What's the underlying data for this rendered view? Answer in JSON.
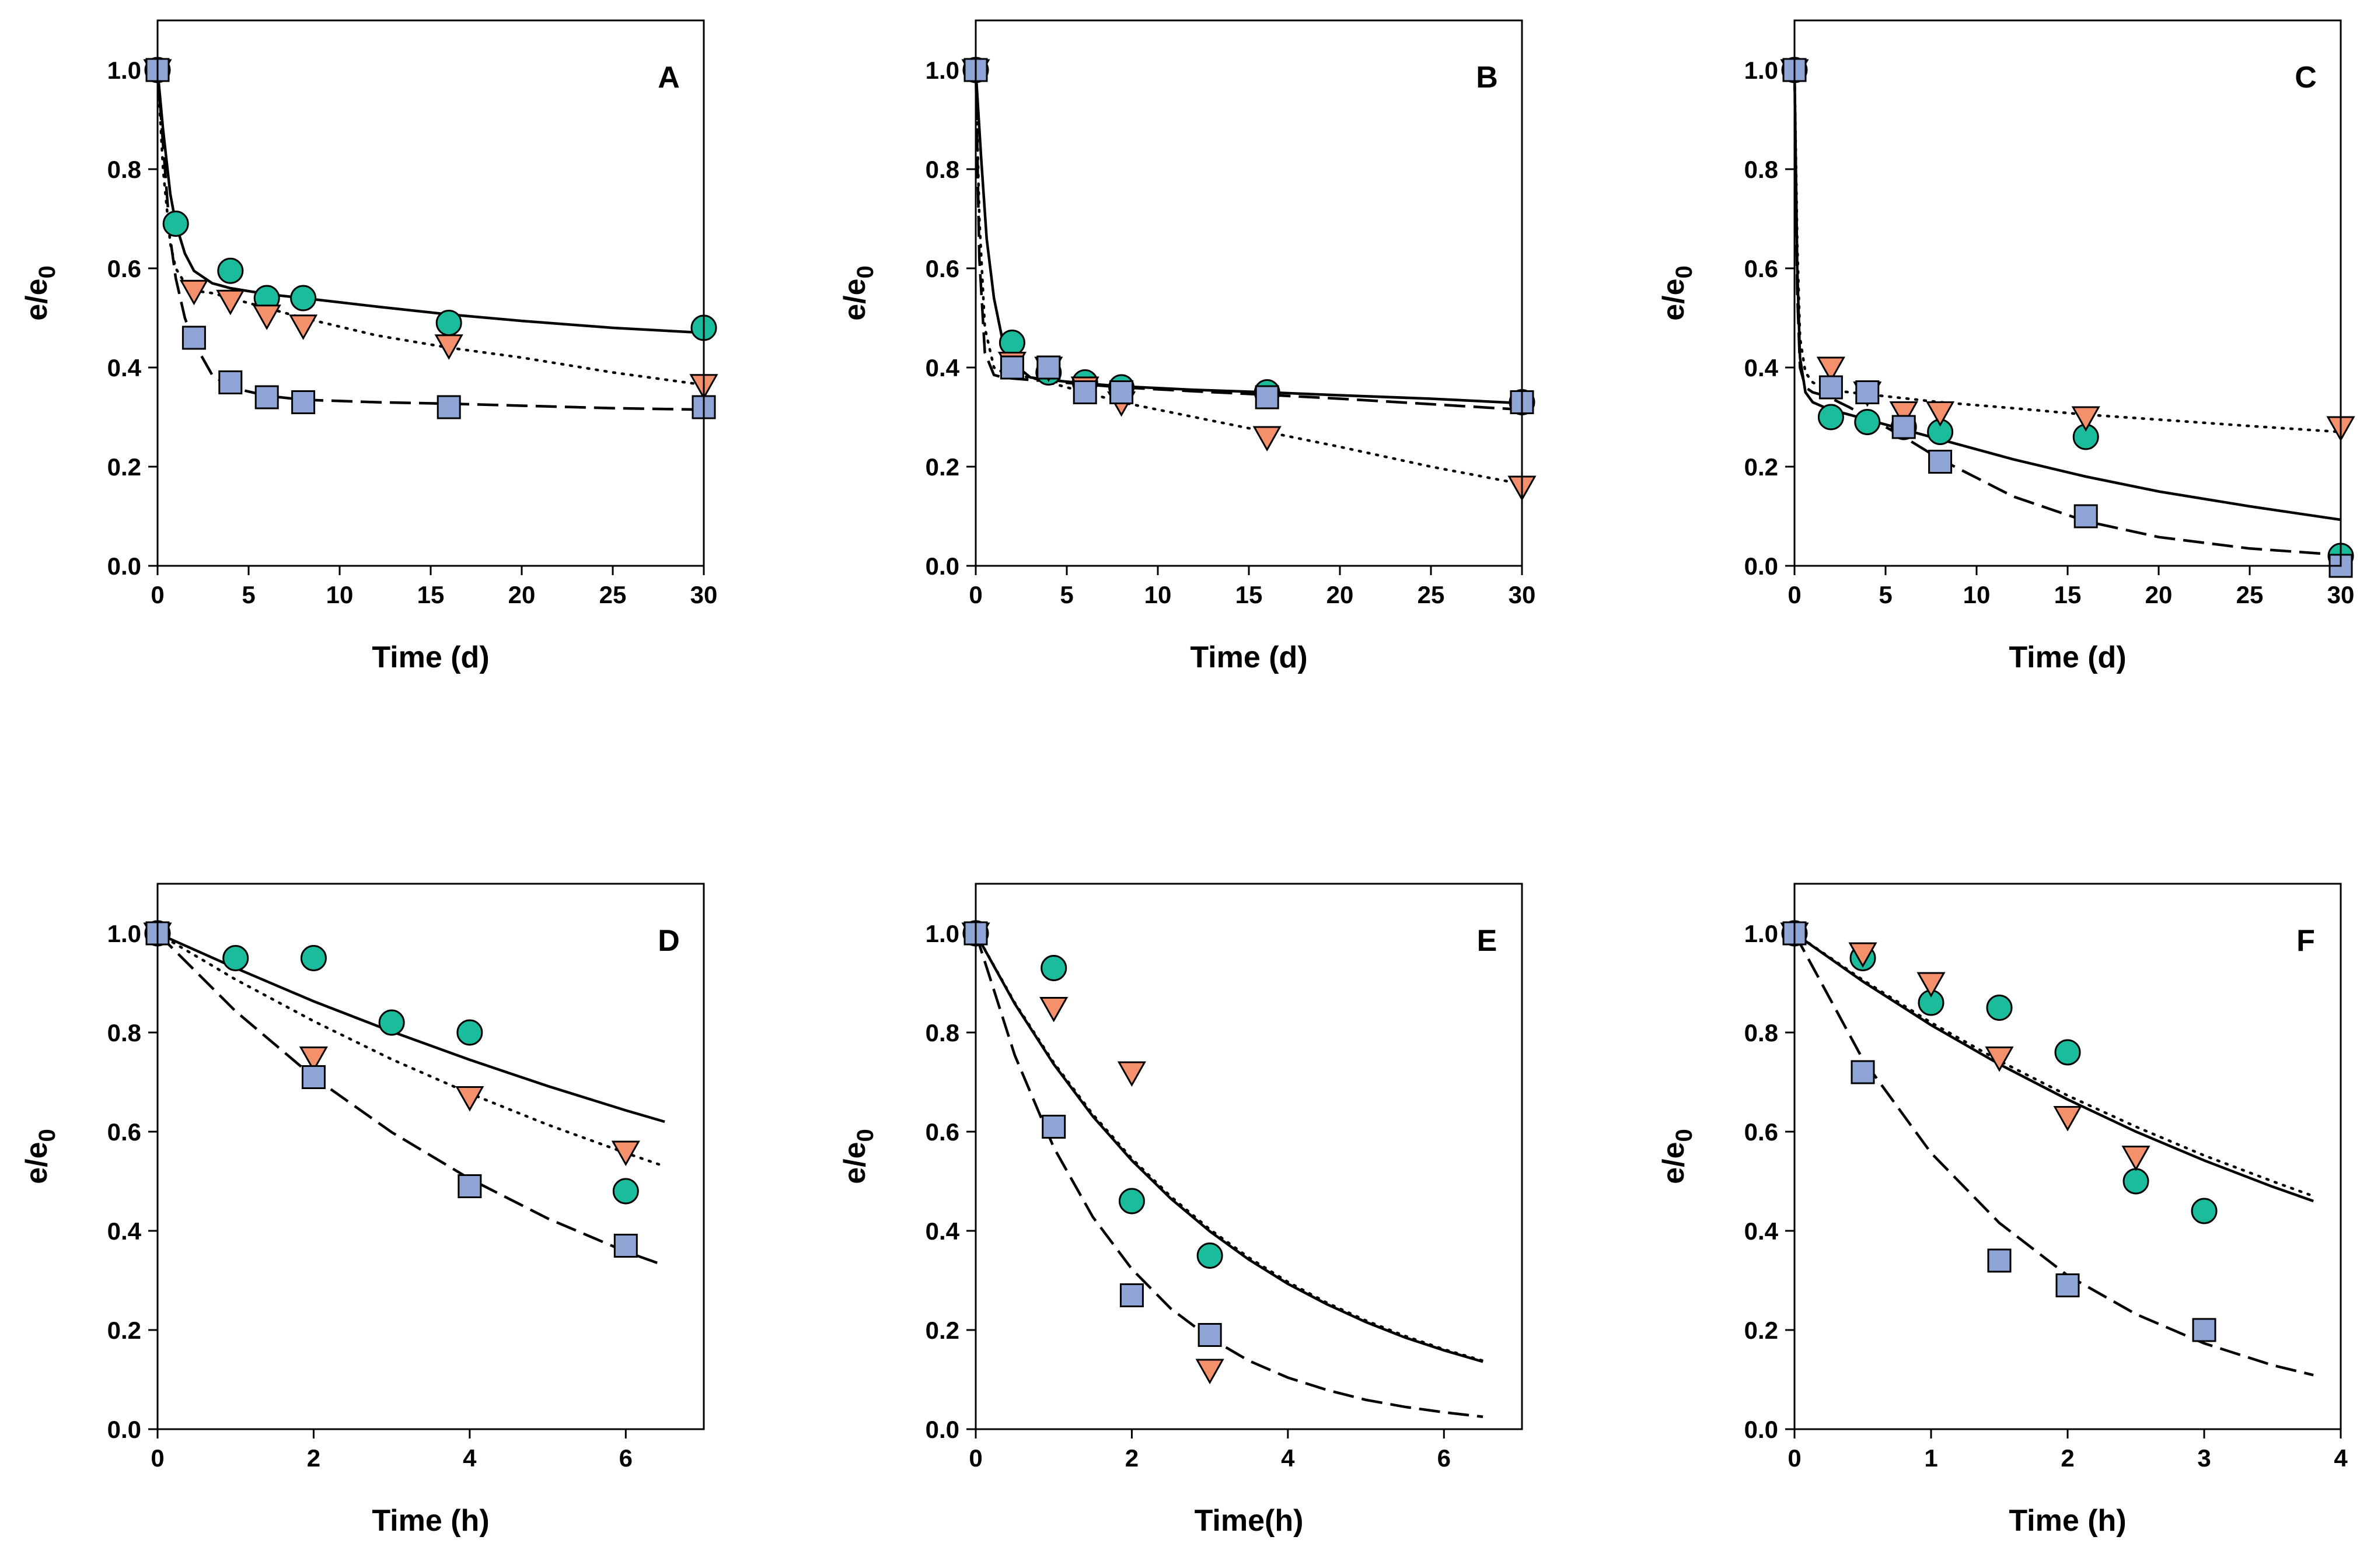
{
  "chart_data": [
    {
      "panel": "A",
      "type": "scatter",
      "xlabel": "Time (d)",
      "ylabel": "e/e0",
      "ylabel_main": "e/e",
      "ylabel_sub": "0",
      "xlim": [
        0,
        30
      ],
      "ylim": [
        0,
        1.1
      ],
      "xticks": [
        0,
        5,
        10,
        15,
        20,
        25,
        30
      ],
      "yticks": [
        "0.0",
        "0.2",
        "0.4",
        "0.6",
        "0.8",
        "1.0"
      ],
      "series": [
        {
          "name": "circle",
          "marker": "circle",
          "color": "#1ABC9C",
          "x": [
            0,
            1,
            4,
            6,
            8,
            16,
            30
          ],
          "y": [
            1.0,
            0.69,
            0.595,
            0.54,
            0.54,
            0.49,
            0.48
          ]
        },
        {
          "name": "triangle",
          "marker": "triangle-down",
          "color": "#F4906B",
          "x": [
            0,
            2,
            4,
            6,
            8,
            16,
            30
          ],
          "y": [
            1.0,
            0.555,
            0.535,
            0.505,
            0.485,
            0.445,
            0.365
          ]
        },
        {
          "name": "square",
          "marker": "square",
          "color": "#8FA5D5",
          "x": [
            0,
            2,
            4,
            6,
            8,
            16,
            30
          ],
          "y": [
            1.0,
            0.46,
            0.37,
            0.34,
            0.33,
            0.32,
            0.32
          ]
        }
      ],
      "fits": [
        {
          "style": "solid",
          "x": [
            0,
            0.3,
            0.7,
            1,
            1.5,
            2,
            3,
            4,
            6,
            8,
            12,
            16,
            20,
            25,
            30
          ],
          "y": [
            1.0,
            0.88,
            0.75,
            0.69,
            0.63,
            0.595,
            0.57,
            0.56,
            0.548,
            0.54,
            0.523,
            0.507,
            0.494,
            0.48,
            0.47
          ]
        },
        {
          "style": "dotted",
          "x": [
            0,
            0.3,
            0.7,
            1,
            1.5,
            2,
            3,
            4,
            6,
            8,
            12,
            16,
            20,
            25,
            30
          ],
          "y": [
            1.0,
            0.8,
            0.65,
            0.6,
            0.57,
            0.555,
            0.55,
            0.54,
            0.52,
            0.5,
            0.465,
            0.44,
            0.42,
            0.39,
            0.365
          ]
        },
        {
          "style": "dashed",
          "x": [
            0,
            0.3,
            0.7,
            1,
            1.5,
            2,
            3,
            4,
            6,
            8,
            12,
            16,
            20,
            25,
            30
          ],
          "y": [
            1.0,
            0.85,
            0.66,
            0.58,
            0.5,
            0.45,
            0.385,
            0.36,
            0.343,
            0.335,
            0.33,
            0.327,
            0.323,
            0.318,
            0.315
          ]
        }
      ]
    },
    {
      "panel": "B",
      "type": "scatter",
      "xlabel": "Time (d)",
      "ylabel": "e/e0",
      "ylabel_main": "e/e",
      "ylabel_sub": "0",
      "xlim": [
        0,
        30
      ],
      "ylim": [
        0,
        1.1
      ],
      "xticks": [
        0,
        5,
        10,
        15,
        20,
        25,
        30
      ],
      "yticks": [
        "0.0",
        "0.2",
        "0.4",
        "0.6",
        "0.8",
        "1.0"
      ],
      "series": [
        {
          "name": "circle",
          "marker": "circle",
          "color": "#1ABC9C",
          "x": [
            0,
            2,
            4,
            6,
            8,
            16,
            30
          ],
          "y": [
            1.0,
            0.45,
            0.39,
            0.37,
            0.36,
            0.35,
            0.33
          ]
        },
        {
          "name": "triangle",
          "marker": "triangle-down",
          "color": "#F4906B",
          "x": [
            0,
            2,
            4,
            6,
            8,
            16,
            30
          ],
          "y": [
            1.0,
            0.41,
            0.4,
            0.36,
            0.33,
            0.26,
            0.16
          ]
        },
        {
          "name": "square",
          "marker": "square",
          "color": "#8FA5D5",
          "x": [
            0,
            2,
            4,
            6,
            8,
            16,
            30
          ],
          "y": [
            1.0,
            0.4,
            0.4,
            0.35,
            0.35,
            0.34,
            0.33
          ]
        }
      ],
      "fits": [
        {
          "style": "solid",
          "x": [
            0,
            0.3,
            0.6,
            1,
            1.5,
            2,
            3,
            4,
            6,
            8,
            12,
            16,
            20,
            25,
            30
          ],
          "y": [
            1.0,
            0.82,
            0.66,
            0.54,
            0.45,
            0.41,
            0.38,
            0.375,
            0.368,
            0.362,
            0.355,
            0.35,
            0.344,
            0.337,
            0.328
          ]
        },
        {
          "style": "dotted",
          "x": [
            0,
            0.2,
            0.5,
            1,
            1.5,
            2,
            3,
            4,
            6,
            8,
            12,
            16,
            20,
            25,
            30
          ],
          "y": [
            1.0,
            0.7,
            0.48,
            0.4,
            0.39,
            0.385,
            0.38,
            0.37,
            0.35,
            0.33,
            0.3,
            0.27,
            0.24,
            0.2,
            0.165
          ]
        },
        {
          "style": "dashed",
          "x": [
            0,
            0.2,
            0.5,
            1,
            1.5,
            2,
            3,
            4,
            6,
            8,
            12,
            16,
            20,
            25,
            30
          ],
          "y": [
            1.0,
            0.62,
            0.43,
            0.385,
            0.38,
            0.378,
            0.375,
            0.372,
            0.366,
            0.36,
            0.352,
            0.345,
            0.337,
            0.326,
            0.315
          ]
        }
      ]
    },
    {
      "panel": "C",
      "type": "scatter",
      "xlabel": "Time (d)",
      "ylabel": "e/e0",
      "ylabel_main": "e/e",
      "ylabel_sub": "0",
      "xlim": [
        0,
        30
      ],
      "ylim": [
        0,
        1.1
      ],
      "xticks": [
        0,
        5,
        10,
        15,
        20,
        25,
        30
      ],
      "yticks": [
        "0.0",
        "0.2",
        "0.4",
        "0.6",
        "0.8",
        "1.0"
      ],
      "series": [
        {
          "name": "circle",
          "marker": "circle",
          "color": "#1ABC9C",
          "x": [
            0,
            2,
            4,
            6,
            8,
            16,
            30
          ],
          "y": [
            1.0,
            0.3,
            0.29,
            0.28,
            0.27,
            0.26,
            0.02
          ]
        },
        {
          "name": "triangle",
          "marker": "triangle-down",
          "color": "#F4906B",
          "x": [
            0,
            2,
            4,
            6,
            8,
            16,
            30
          ],
          "y": [
            1.0,
            0.4,
            0.35,
            0.31,
            0.31,
            0.3,
            0.28
          ]
        },
        {
          "name": "square",
          "marker": "square",
          "color": "#8FA5D5",
          "x": [
            0,
            2,
            4,
            6,
            8,
            16,
            30
          ],
          "y": [
            1.0,
            0.36,
            0.35,
            0.28,
            0.21,
            0.1,
            0.0
          ]
        }
      ],
      "fits": [
        {
          "style": "solid",
          "x": [
            0,
            0.15,
            0.3,
            0.6,
            1,
            1.5,
            2,
            3,
            4,
            6,
            8,
            12,
            16,
            20,
            25,
            30
          ],
          "y": [
            1.0,
            0.6,
            0.42,
            0.35,
            0.33,
            0.322,
            0.315,
            0.305,
            0.295,
            0.275,
            0.255,
            0.215,
            0.18,
            0.15,
            0.12,
            0.093
          ]
        },
        {
          "style": "dotted",
          "x": [
            0,
            0.15,
            0.3,
            0.6,
            1,
            1.5,
            2,
            3,
            4,
            6,
            8,
            12,
            16,
            20,
            25,
            30
          ],
          "y": [
            1.0,
            0.65,
            0.46,
            0.39,
            0.37,
            0.36,
            0.355,
            0.35,
            0.346,
            0.338,
            0.33,
            0.318,
            0.305,
            0.295,
            0.282,
            0.27
          ]
        },
        {
          "style": "dashed",
          "x": [
            0,
            0.15,
            0.3,
            0.6,
            1,
            1.5,
            2,
            3,
            4,
            6,
            8,
            12,
            16,
            20,
            25,
            30
          ],
          "y": [
            1.0,
            0.55,
            0.4,
            0.36,
            0.35,
            0.345,
            0.338,
            0.32,
            0.3,
            0.26,
            0.215,
            0.14,
            0.09,
            0.058,
            0.035,
            0.022
          ]
        }
      ]
    },
    {
      "panel": "D",
      "type": "scatter",
      "xlabel": "Time (h)",
      "ylabel": "e/e0",
      "ylabel_main": "e/e",
      "ylabel_sub": "0",
      "xlim": [
        0,
        7
      ],
      "ylim": [
        0,
        1.1
      ],
      "xticks": [
        0,
        2,
        4,
        6
      ],
      "yticks": [
        "0.0",
        "0.2",
        "0.4",
        "0.6",
        "0.8",
        "1.0"
      ],
      "series": [
        {
          "name": "circle",
          "marker": "circle",
          "color": "#1ABC9C",
          "x": [
            0,
            1,
            2,
            3,
            4,
            6
          ],
          "y": [
            1.0,
            0.95,
            0.95,
            0.82,
            0.8,
            0.48
          ]
        },
        {
          "name": "triangle",
          "marker": "triangle-down",
          "color": "#F4906B",
          "x": [
            0,
            2,
            4,
            6
          ],
          "y": [
            1.0,
            0.75,
            0.67,
            0.56
          ]
        },
        {
          "name": "square",
          "marker": "square",
          "color": "#8FA5D5",
          "x": [
            0,
            2,
            4,
            6
          ],
          "y": [
            1.0,
            0.71,
            0.49,
            0.37
          ]
        }
      ],
      "fits": [
        {
          "style": "solid",
          "x": [
            0,
            1,
            2,
            3,
            4,
            5,
            6,
            6.5
          ],
          "y": [
            1.0,
            0.93,
            0.863,
            0.802,
            0.745,
            0.692,
            0.643,
            0.62
          ]
        },
        {
          "style": "dotted",
          "x": [
            0,
            1,
            2,
            3,
            4,
            5,
            6,
            6.5
          ],
          "y": [
            1.0,
            0.907,
            0.823,
            0.746,
            0.677,
            0.614,
            0.557,
            0.53
          ]
        },
        {
          "style": "dashed",
          "x": [
            0,
            1,
            2,
            3,
            4,
            5,
            6,
            6.5
          ],
          "y": [
            1.0,
            0.843,
            0.71,
            0.599,
            0.505,
            0.425,
            0.358,
            0.33
          ]
        }
      ]
    },
    {
      "panel": "E",
      "type": "scatter",
      "xlabel": "Time(h)",
      "ylabel": "e/e0",
      "ylabel_main": "e/e",
      "ylabel_sub": "0",
      "xlim": [
        0,
        7
      ],
      "ylim": [
        0,
        1.1
      ],
      "xticks": [
        0,
        2,
        4,
        6
      ],
      "yticks": [
        "0.0",
        "0.2",
        "0.4",
        "0.6",
        "0.8",
        "1.0"
      ],
      "series": [
        {
          "name": "circle",
          "marker": "circle",
          "color": "#1ABC9C",
          "x": [
            0,
            1,
            2,
            3
          ],
          "y": [
            1.0,
            0.93,
            0.46,
            0.35
          ]
        },
        {
          "name": "triangle",
          "marker": "triangle-down",
          "color": "#F4906B",
          "x": [
            0,
            1,
            2,
            3
          ],
          "y": [
            1.0,
            0.85,
            0.72,
            0.12
          ]
        },
        {
          "name": "square",
          "marker": "square",
          "color": "#8FA5D5",
          "x": [
            0,
            1,
            2,
            3
          ],
          "y": [
            1.0,
            0.61,
            0.27,
            0.19
          ]
        }
      ],
      "fits": [
        {
          "style": "solid",
          "x": [
            0,
            0.5,
            1,
            1.5,
            2,
            2.5,
            3,
            3.5,
            4,
            4.5,
            5,
            5.5,
            6,
            6.5
          ],
          "y": [
            1.0,
            0.858,
            0.736,
            0.631,
            0.542,
            0.465,
            0.399,
            0.342,
            0.293,
            0.252,
            0.216,
            0.185,
            0.159,
            0.136
          ]
        },
        {
          "style": "dotted",
          "x": [
            0,
            0.5,
            1,
            1.5,
            2,
            2.5,
            3,
            3.5,
            4,
            4.5,
            5,
            5.5,
            6,
            6.5
          ],
          "y": [
            1.0,
            0.86,
            0.739,
            0.635,
            0.546,
            0.469,
            0.403,
            0.346,
            0.297,
            0.255,
            0.219,
            0.188,
            0.161,
            0.138
          ]
        },
        {
          "style": "dashed",
          "x": [
            0,
            0.5,
            1,
            1.5,
            2,
            2.5,
            3,
            3.5,
            4,
            4.5,
            5,
            5.5,
            6,
            6.5
          ],
          "y": [
            1.0,
            0.754,
            0.568,
            0.428,
            0.323,
            0.243,
            0.184,
            0.138,
            0.104,
            0.079,
            0.059,
            0.045,
            0.034,
            0.025
          ]
        }
      ]
    },
    {
      "panel": "F",
      "type": "scatter",
      "xlabel": "Time (h)",
      "ylabel": "e/e0",
      "ylabel_main": "e/e",
      "ylabel_sub": "0",
      "xlim": [
        0,
        4
      ],
      "ylim": [
        0,
        1.1
      ],
      "xticks": [
        0,
        1,
        2,
        3,
        4
      ],
      "yticks": [
        "0.0",
        "0.2",
        "0.4",
        "0.6",
        "0.8",
        "1.0"
      ],
      "series": [
        {
          "name": "circle",
          "marker": "circle",
          "color": "#1ABC9C",
          "x": [
            0,
            0.5,
            1,
            1.5,
            2,
            2.5,
            3
          ],
          "y": [
            1.0,
            0.95,
            0.86,
            0.85,
            0.76,
            0.5,
            0.44
          ]
        },
        {
          "name": "triangle",
          "marker": "triangle-down",
          "color": "#F4906B",
          "x": [
            0,
            0.5,
            1,
            1.5,
            2,
            2.5
          ],
          "y": [
            1.0,
            0.96,
            0.9,
            0.75,
            0.63,
            0.55
          ]
        },
        {
          "name": "square",
          "marker": "square",
          "color": "#8FA5D5",
          "x": [
            0,
            0.5,
            1.5,
            2,
            3
          ],
          "y": [
            1.0,
            0.72,
            0.34,
            0.29,
            0.2
          ]
        }
      ],
      "fits": [
        {
          "style": "solid",
          "x": [
            0,
            0.5,
            1,
            1.5,
            2,
            2.5,
            3,
            3.5,
            3.8
          ],
          "y": [
            1.0,
            0.903,
            0.815,
            0.736,
            0.665,
            0.6,
            0.542,
            0.489,
            0.46
          ]
        },
        {
          "style": "dotted",
          "x": [
            0,
            0.5,
            1,
            1.5,
            2,
            2.5,
            3,
            3.5,
            3.8
          ],
          "y": [
            1.0,
            0.906,
            0.82,
            0.743,
            0.673,
            0.61,
            0.552,
            0.5,
            0.47
          ]
        },
        {
          "style": "dashed",
          "x": [
            0,
            0.5,
            1,
            1.5,
            2,
            2.5,
            3,
            3.5,
            3.8
          ],
          "y": [
            1.0,
            0.746,
            0.557,
            0.416,
            0.31,
            0.232,
            0.173,
            0.129,
            0.109
          ]
        }
      ]
    }
  ]
}
